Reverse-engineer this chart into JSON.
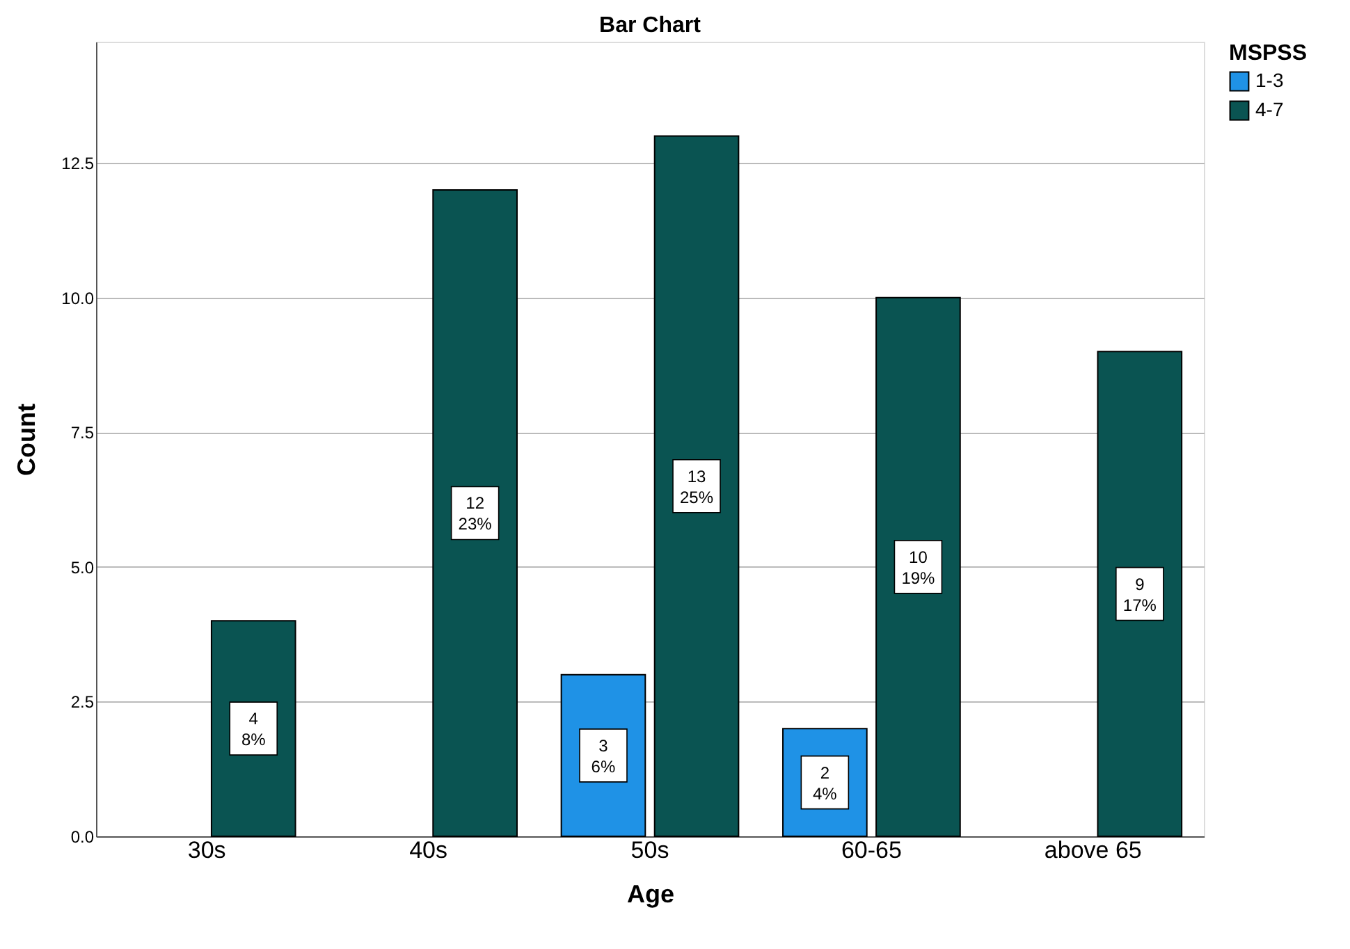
{
  "chart_data": {
    "type": "bar",
    "title": "Bar Chart",
    "xlabel": "Age",
    "ylabel": "Count",
    "legend_title": "MSPSS",
    "categories": [
      "30s",
      "40s",
      "50s",
      "60-65",
      "above 65"
    ],
    "series": [
      {
        "name": "1-3",
        "color": "#1f92e6",
        "values": [
          null,
          null,
          3,
          2,
          null
        ],
        "value_labels": [
          null,
          null,
          "3\n6%",
          "2\n4%",
          null
        ]
      },
      {
        "name": "4-7",
        "color": "#0a5452",
        "values": [
          4,
          12,
          13,
          10,
          9
        ],
        "value_labels": [
          "4\n8%",
          "12\n23%",
          "13\n25%",
          "10\n19%",
          "9\n17%"
        ]
      }
    ],
    "ylim": [
      0,
      14.75
    ],
    "yticks": [
      {
        "value": 0,
        "label": "0.0"
      },
      2.5,
      {
        "value": 5,
        "label": "5.0"
      },
      7.5,
      {
        "value": 10,
        "label": "10.0"
      },
      12.5
    ],
    "grid": "y",
    "legend": "top right"
  }
}
